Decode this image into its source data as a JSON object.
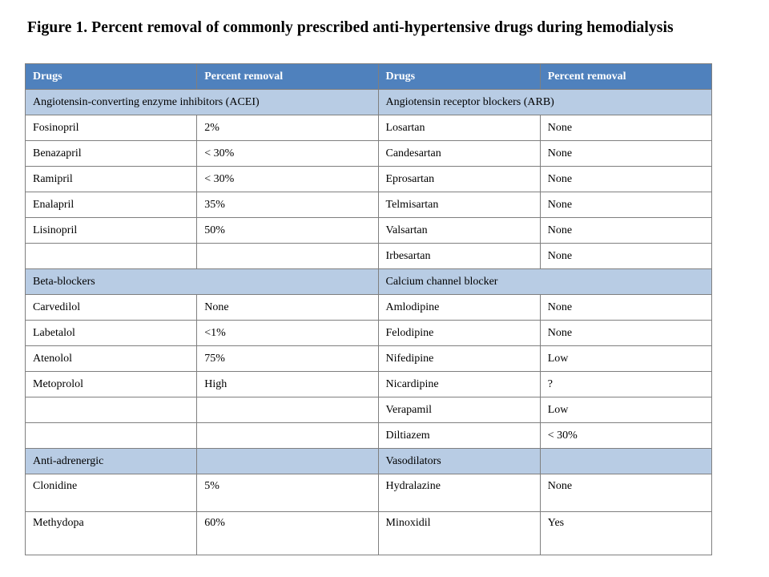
{
  "title": "Figure 1. Percent removal of commonly prescribed  anti-hypertensive  drugs  during  hemodialysis",
  "headers": [
    "Drugs",
    "Percent removal",
    "Drugs",
    "Percent removal"
  ],
  "rows": [
    {
      "type": "category",
      "left_label": "Angiotensin-converting  enzyme  inhibitors  (ACEI)",
      "left_value": "",
      "right_label": "Angiotensin  receptor blockers (ARB)",
      "right_value": ""
    },
    {
      "type": "data",
      "left_drug": "Fosinopril",
      "left_value": "2%",
      "right_drug": "Losartan",
      "right_value": "None"
    },
    {
      "type": "data",
      "left_drug": "Benazapril",
      "left_value": "< 30%",
      "right_drug": "Candesartan",
      "right_value": "None"
    },
    {
      "type": "data",
      "left_drug": "Ramipril",
      "left_value": "< 30%",
      "right_drug": "Eprosartan",
      "right_value": "None"
    },
    {
      "type": "data",
      "left_drug": "Enalapril",
      "left_value": "35%",
      "right_drug": "Telmisartan",
      "right_value": "None"
    },
    {
      "type": "data",
      "left_drug": "Lisinopril",
      "left_value": "50%",
      "right_drug": "Valsartan",
      "right_value": "None"
    },
    {
      "type": "data",
      "left_drug": "",
      "left_value": "",
      "right_drug": "Irbesartan",
      "right_value": "None"
    },
    {
      "type": "category",
      "left_label": "Beta-blockers",
      "left_value": "",
      "right_label": "Calcium  channel  blocker",
      "right_value": ""
    },
    {
      "type": "data",
      "left_drug": "Carvedilol",
      "left_value": "None",
      "right_drug": "Amlodipine",
      "right_value": "None"
    },
    {
      "type": "data",
      "left_drug": "Labetalol",
      "left_value": "<1%",
      "right_drug": "Felodipine",
      "right_value": "None"
    },
    {
      "type": "data",
      "left_drug": "Atenolol",
      "left_value": "75%",
      "right_drug": "Nifedipine",
      "right_value": "Low"
    },
    {
      "type": "data",
      "left_drug": "Metoprolol",
      "left_value": "High",
      "right_drug": "Nicardipine",
      "right_value": "?"
    },
    {
      "type": "data",
      "left_drug": "",
      "left_value": "",
      "right_drug": "Verapamil",
      "right_value": "Low"
    },
    {
      "type": "data",
      "left_drug": "",
      "left_value": "",
      "right_drug": "Diltiazem",
      "right_value": "< 30%"
    },
    {
      "type": "category",
      "left_label": "Anti-adrenergic",
      "left_value": "",
      "right_label": "Vasodilators",
      "right_value": ""
    },
    {
      "type": "data",
      "left_drug": "Clonidine",
      "left_value": "5%",
      "right_drug": "Hydralazine",
      "right_value": "None"
    },
    {
      "type": "data",
      "left_drug": "Methydopa",
      "left_value": "60%",
      "right_drug": "Minoxidil",
      "right_value": "Yes"
    }
  ],
  "colors": {
    "header_bg": "#4f81bd",
    "category_bg": "#b8cce4",
    "border": "#7f7f7f"
  }
}
